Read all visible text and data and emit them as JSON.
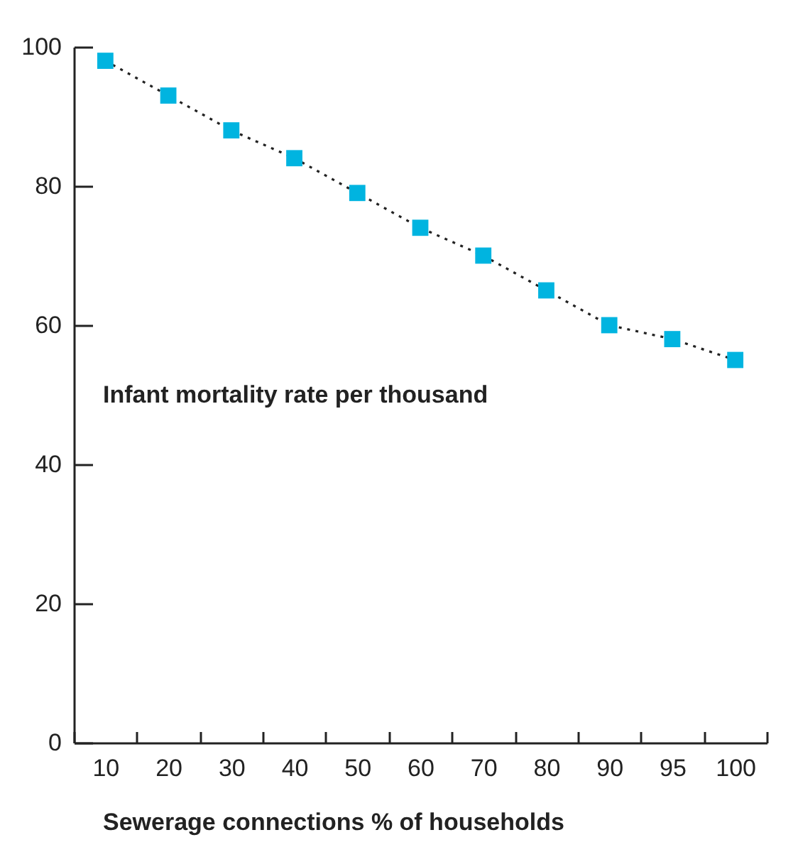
{
  "chart_data": {
    "type": "line",
    "xlabel": "Sewerage connections % of households",
    "ylabel": "Infant mortality rate per thousand",
    "categories": [
      "10",
      "20",
      "30",
      "40",
      "50",
      "60",
      "70",
      "80",
      "90",
      "95",
      "100"
    ],
    "series": [
      {
        "color": "#00b4e0",
        "values": [
          98,
          93,
          88,
          84,
          79,
          74,
          70,
          65,
          60,
          58,
          55
        ]
      }
    ],
    "ylim": [
      0,
      100
    ],
    "yticks": [
      0,
      20,
      40,
      60,
      80,
      100
    ],
    "grid": false,
    "legend": false,
    "marker": "square",
    "line_style": "dotted"
  }
}
